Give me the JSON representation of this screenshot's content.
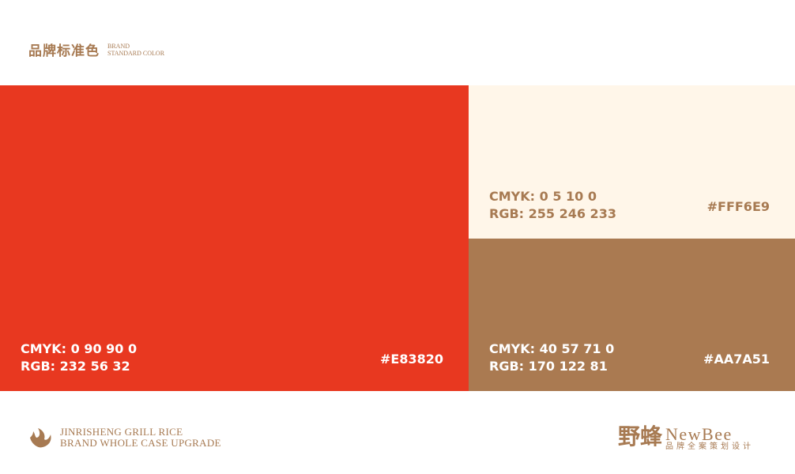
{
  "header": {
    "title_cn": "品牌标准色",
    "title_en_1": "BRAND",
    "title_en_2": "STANDARD COLOR"
  },
  "swatches": [
    {
      "cmyk": "CMYK: 0 90 90 0",
      "rgb": "RGB: 232 56 32",
      "hex": "#E83820",
      "color": "#E83820",
      "text_color": "#FFFFFF"
    },
    {
      "cmyk": "CMYK: 0 5 10 0",
      "rgb": "RGB: 255 246 233",
      "hex": "#FFF6E9",
      "color": "#FFF6E9",
      "text_color": "#A77A52"
    },
    {
      "cmyk": "CMYK: 40 57 71 0",
      "rgb": "RGB: 170 122 81",
      "hex": "#AA7A51",
      "color": "#AA7A51",
      "text_color": "#FFFFFF"
    }
  ],
  "footer": {
    "brand_line_1": "JINRISHENG GRILL RICE",
    "brand_line_2": "BRAND WHOLE CASE UPGRADE",
    "logo_cn": "野蜂",
    "logo_en": "NewBee",
    "logo_sub": "品牌全案策划设计",
    "accent": "#A77A52"
  }
}
